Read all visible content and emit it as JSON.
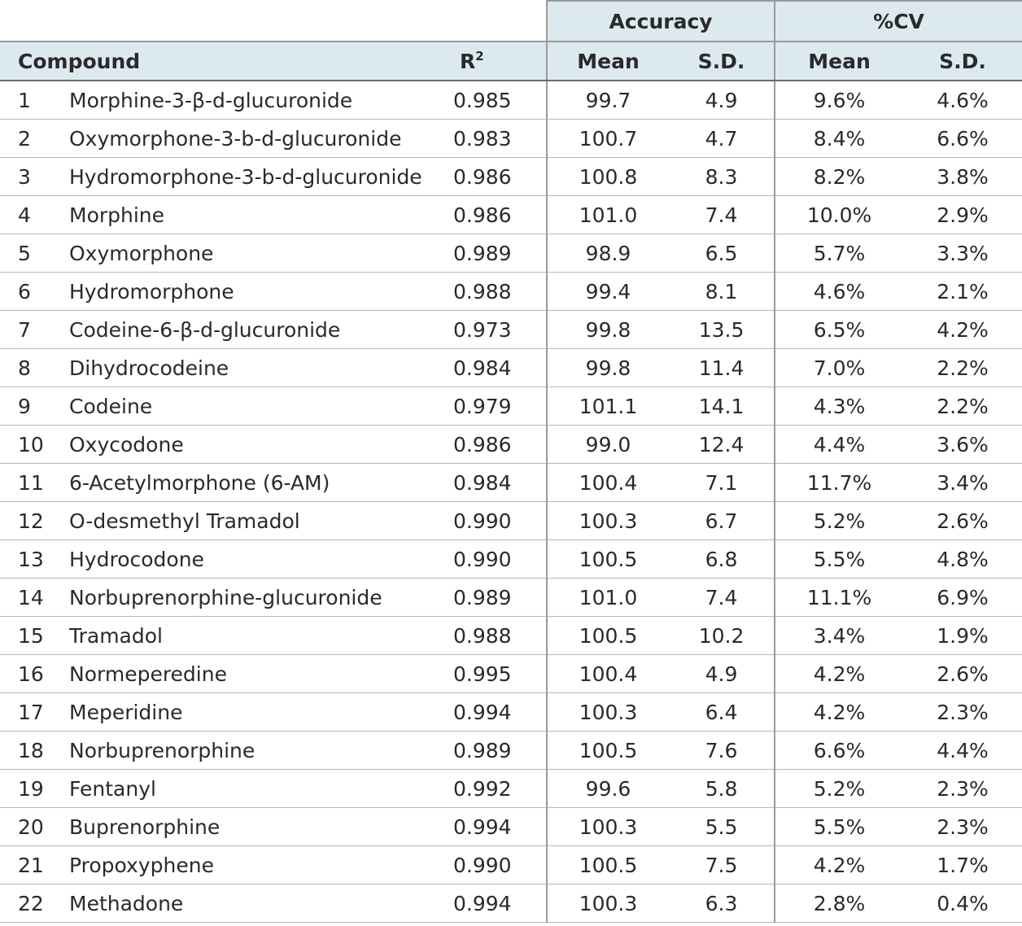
{
  "header": {
    "group_accuracy": "Accuracy",
    "group_cv": "%CV",
    "compound": "Compound",
    "r2_base": "R",
    "r2_sup": "2",
    "acc_mean": "Mean",
    "acc_sd": "S.D.",
    "cv_mean": "Mean",
    "cv_sd": "S.D."
  },
  "rows": [
    {
      "n": "1",
      "compound": "Morphine-3-β-d-glucuronide",
      "r2": "0.985",
      "acc_mean": "99.7",
      "acc_sd": "4.9",
      "cv_mean": "9.6%",
      "cv_sd": "4.6%"
    },
    {
      "n": "2",
      "compound": "Oxymorphone-3-b-d-glucuronide",
      "r2": "0.983",
      "acc_mean": "100.7",
      "acc_sd": "4.7",
      "cv_mean": "8.4%",
      "cv_sd": "6.6%"
    },
    {
      "n": "3",
      "compound": "Hydromorphone-3-b-d-glucuronide",
      "r2": "0.986",
      "acc_mean": "100.8",
      "acc_sd": "8.3",
      "cv_mean": "8.2%",
      "cv_sd": "3.8%"
    },
    {
      "n": "4",
      "compound": "Morphine",
      "r2": "0.986",
      "acc_mean": "101.0",
      "acc_sd": "7.4",
      "cv_mean": "10.0%",
      "cv_sd": "2.9%"
    },
    {
      "n": "5",
      "compound": "Oxymorphone",
      "r2": "0.989",
      "acc_mean": "98.9",
      "acc_sd": "6.5",
      "cv_mean": "5.7%",
      "cv_sd": "3.3%"
    },
    {
      "n": "6",
      "compound": "Hydromorphone",
      "r2": "0.988",
      "acc_mean": "99.4",
      "acc_sd": "8.1",
      "cv_mean": "4.6%",
      "cv_sd": "2.1%"
    },
    {
      "n": "7",
      "compound": "Codeine-6-β-d-glucuronide",
      "r2": "0.973",
      "acc_mean": "99.8",
      "acc_sd": "13.5",
      "cv_mean": "6.5%",
      "cv_sd": "4.2%"
    },
    {
      "n": "8",
      "compound": "Dihydrocodeine",
      "r2": "0.984",
      "acc_mean": "99.8",
      "acc_sd": "11.4",
      "cv_mean": "7.0%",
      "cv_sd": "2.2%"
    },
    {
      "n": "9",
      "compound": "Codeine",
      "r2": "0.979",
      "acc_mean": "101.1",
      "acc_sd": "14.1",
      "cv_mean": "4.3%",
      "cv_sd": "2.2%"
    },
    {
      "n": "10",
      "compound": "Oxycodone",
      "r2": "0.986",
      "acc_mean": "99.0",
      "acc_sd": "12.4",
      "cv_mean": "4.4%",
      "cv_sd": "3.6%"
    },
    {
      "n": "11",
      "compound": "6-Acetylmorphone (6-AM)",
      "r2": "0.984",
      "acc_mean": "100.4",
      "acc_sd": "7.1",
      "cv_mean": "11.7%",
      "cv_sd": "3.4%"
    },
    {
      "n": "12",
      "compound": "O-desmethyl Tramadol",
      "r2": "0.990",
      "acc_mean": "100.3",
      "acc_sd": "6.7",
      "cv_mean": "5.2%",
      "cv_sd": "2.6%"
    },
    {
      "n": "13",
      "compound": "Hydrocodone",
      "r2": "0.990",
      "acc_mean": "100.5",
      "acc_sd": "6.8",
      "cv_mean": "5.5%",
      "cv_sd": "4.8%"
    },
    {
      "n": "14",
      "compound": "Norbuprenorphine-glucuronide",
      "r2": "0.989",
      "acc_mean": "101.0",
      "acc_sd": "7.4",
      "cv_mean": "11.1%",
      "cv_sd": "6.9%"
    },
    {
      "n": "15",
      "compound": "Tramadol",
      "r2": "0.988",
      "acc_mean": "100.5",
      "acc_sd": "10.2",
      "cv_mean": "3.4%",
      "cv_sd": "1.9%"
    },
    {
      "n": "16",
      "compound": "Normeperedine",
      "r2": "0.995",
      "acc_mean": "100.4",
      "acc_sd": "4.9",
      "cv_mean": "4.2%",
      "cv_sd": "2.6%"
    },
    {
      "n": "17",
      "compound": "Meperidine",
      "r2": "0.994",
      "acc_mean": "100.3",
      "acc_sd": "6.4",
      "cv_mean": "4.2%",
      "cv_sd": "2.3%"
    },
    {
      "n": "18",
      "compound": "Norbuprenorphine",
      "r2": "0.989",
      "acc_mean": "100.5",
      "acc_sd": "7.6",
      "cv_mean": "6.6%",
      "cv_sd": "4.4%"
    },
    {
      "n": "19",
      "compound": "Fentanyl",
      "r2": "0.992",
      "acc_mean": "99.6",
      "acc_sd": "5.8",
      "cv_mean": "5.2%",
      "cv_sd": "2.3%"
    },
    {
      "n": "20",
      "compound": "Buprenorphine",
      "r2": "0.994",
      "acc_mean": "100.3",
      "acc_sd": "5.5",
      "cv_mean": "5.5%",
      "cv_sd": "2.3%"
    },
    {
      "n": "21",
      "compound": "Propoxyphene",
      "r2": "0.990",
      "acc_mean": "100.5",
      "acc_sd": "7.5",
      "cv_mean": "4.2%",
      "cv_sd": "1.7%"
    },
    {
      "n": "22",
      "compound": "Methadone",
      "r2": "0.994",
      "acc_mean": "100.3",
      "acc_sd": "6.3",
      "cv_mean": "2.8%",
      "cv_sd": "0.4%"
    }
  ]
}
